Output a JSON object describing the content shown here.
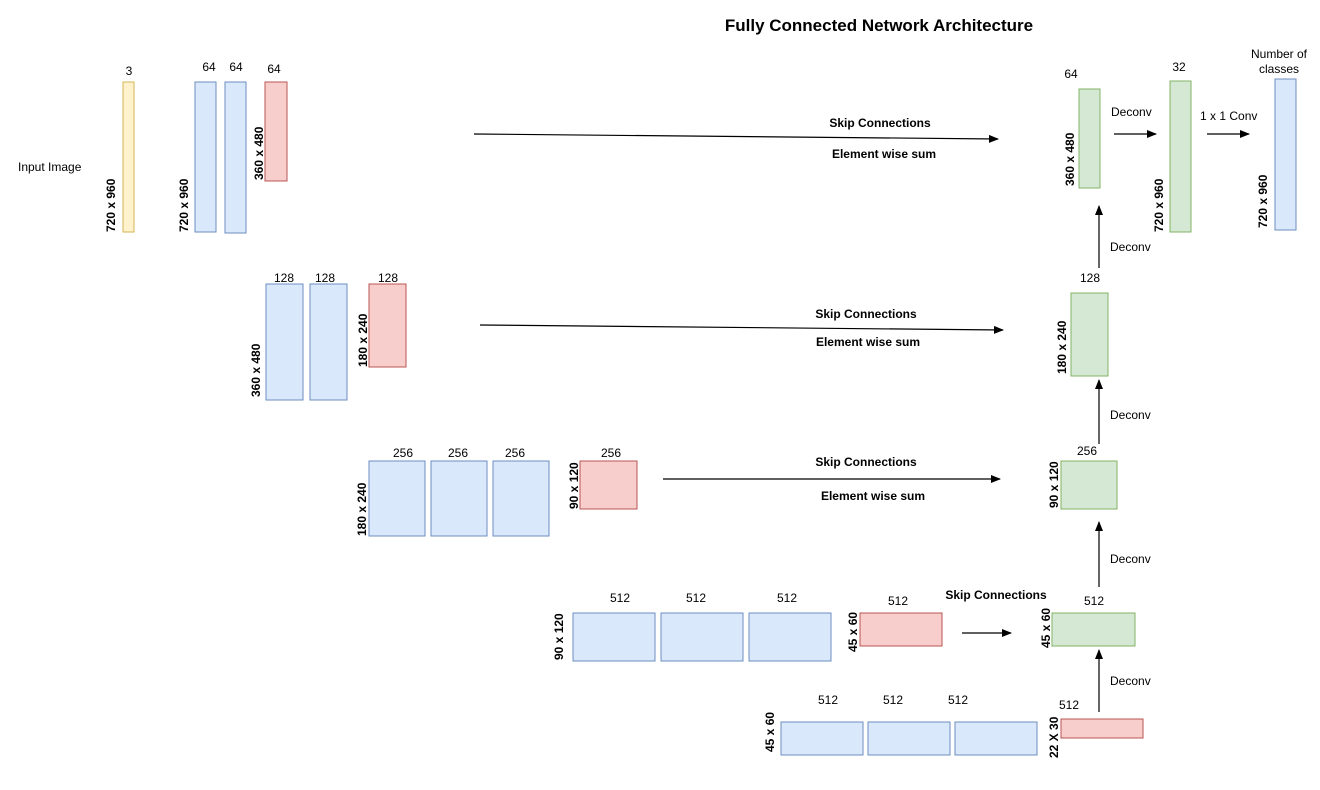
{
  "title": "Fully Connected Network Architecture",
  "input_label": "Input Image",
  "colors": {
    "encoder": "#dae8fc",
    "pool": "#f8cecc",
    "decoder": "#d5e8d4",
    "input": "#fff2cc"
  },
  "encoder": {
    "input": {
      "channels": "3",
      "size": "720 x 960"
    },
    "block1": {
      "channels": [
        "64",
        "64"
      ],
      "size": "720 x 960",
      "pool_channels": "64",
      "pool_size": "360 x 480"
    },
    "block2": {
      "channels": [
        "128",
        "128"
      ],
      "size": "360 x 480",
      "pool_channels": "128",
      "pool_size": "180 x 240"
    },
    "block3": {
      "channels": [
        "256",
        "256",
        "256"
      ],
      "size": "180 x 240",
      "pool_channels": "256",
      "pool_size": "90 x 120"
    },
    "block4": {
      "channels": [
        "512",
        "512",
        "512"
      ],
      "size": "90 x 120",
      "pool_channels": "512",
      "pool_size": "45 x 60"
    },
    "block5": {
      "channels": [
        "512",
        "512",
        "512"
      ],
      "size": "45 x 60",
      "pool_channels": "512",
      "pool_size": "22 X 30"
    }
  },
  "decoder": {
    "d1": {
      "channels": "512",
      "size": "45 x 60"
    },
    "d2": {
      "channels": "256",
      "size": "90 x 120"
    },
    "d3": {
      "channels": "128",
      "size": "180 x 240"
    },
    "d4": {
      "channels": "64",
      "size": "360 x 480"
    },
    "d5": {
      "channels": "32",
      "size": "720 x 960"
    },
    "out": {
      "channels": "Number of classes",
      "channels_line1": "Number of",
      "channels_line2": "classes",
      "size": "720 x 960"
    }
  },
  "edges": {
    "skip": "Skip Connections",
    "sum": "Element wise sum",
    "deconv": "Deconv",
    "conv1x1": "1 x 1 Conv"
  }
}
